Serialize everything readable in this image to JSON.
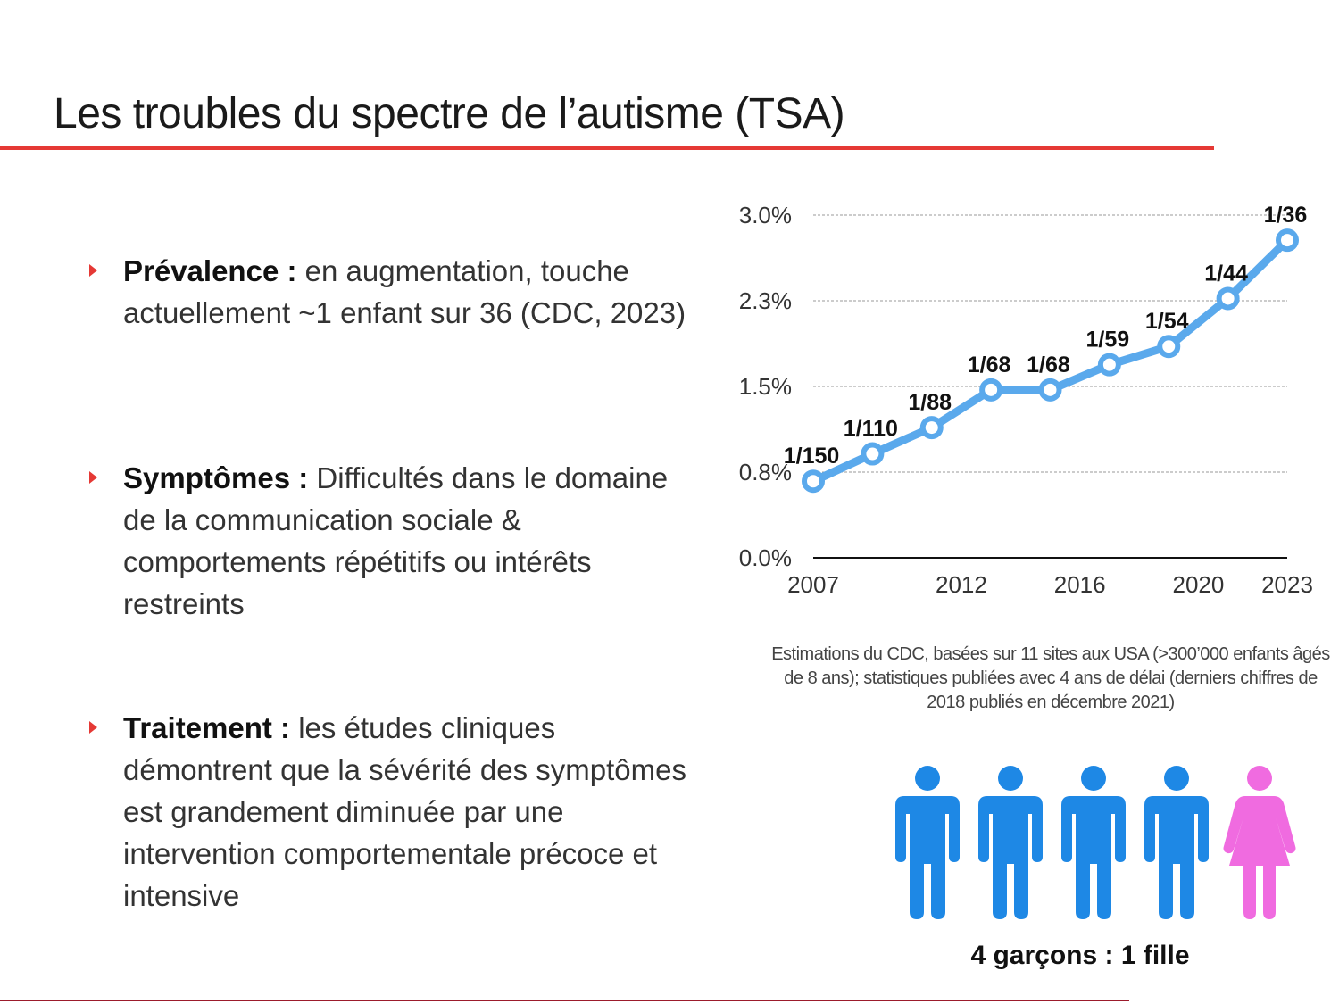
{
  "slide": {
    "title": "Les troubles du spectre de l’autisme (TSA)",
    "colors": {
      "accent": "#e53935",
      "line": "#5aa9ec",
      "male": "#1e88e5",
      "female": "#f06be0"
    }
  },
  "bullets": [
    {
      "head": "Prévalence :",
      "body": " en augmentation, touche actuellement ~1 enfant sur 36 (CDC, 2023)"
    },
    {
      "head": "Symptômes :",
      "body": " Difficultés dans le domaine de la communication sociale & comportements répétitifs ou intérêts restreints"
    },
    {
      "head": "Traitement :",
      "body": " les études cliniques démontrent que la sévérité des symptômes est grandement diminuée par une intervention comportementale précoce et intensive"
    }
  ],
  "chart_data": {
    "type": "line",
    "x": [
      2007,
      2009,
      2011,
      2013,
      2015,
      2017,
      2019,
      2021,
      2023
    ],
    "y": [
      0.67,
      0.91,
      1.14,
      1.47,
      1.47,
      1.69,
      1.85,
      2.27,
      2.78
    ],
    "point_labels": [
      "1/150",
      "1/110",
      "1/88",
      "1/68",
      "1/68",
      "1/59",
      "1/54",
      "1/44",
      "1/36"
    ],
    "x_ticks": [
      2007,
      2012,
      2016,
      2020,
      2023
    ],
    "y_ticks": [
      "0.0%",
      "0.8%",
      "1.5%",
      "2.3%",
      "3.0%"
    ],
    "y_tick_values": [
      0,
      0.75,
      1.5,
      2.25,
      3.0
    ],
    "ylim": [
      0,
      3.0
    ],
    "xlim": [
      2007,
      2023
    ],
    "grid": true,
    "caption": "Estimations du CDC, basées sur 11 sites aux USA (>300’000 enfants âgés de 8 ans); statistiques publiées avec 4 ans de délai (derniers chiffres de 2018 publiés en décembre 2021)"
  },
  "gender_ratio": {
    "icons": [
      "male",
      "male",
      "male",
      "male",
      "female"
    ],
    "label": "4 garçons : 1 fille"
  }
}
